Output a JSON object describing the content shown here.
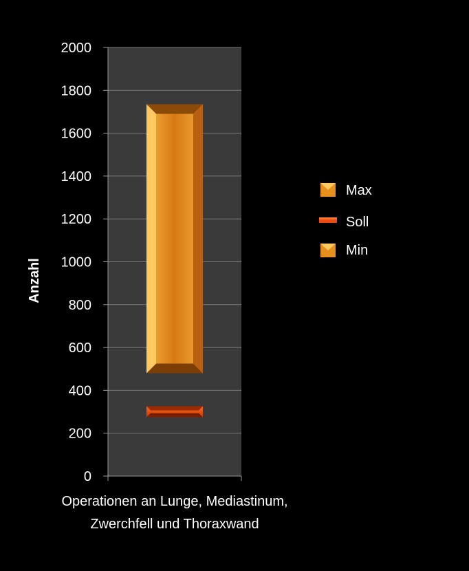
{
  "chart_data": {
    "type": "bar",
    "categories": [
      "Operationen an Lunge, Mediastinum, Zwerchfell und Thoraxwand"
    ],
    "category_label_lines": [
      "Operationen an Lunge, Mediastinum,",
      "Zwerchfell und Thoraxwand"
    ],
    "ylabel": "Anzahl",
    "xlabel": "",
    "ylim": [
      0,
      2000
    ],
    "yticks": [
      0,
      200,
      400,
      600,
      800,
      1000,
      1200,
      1400,
      1600,
      1800,
      2000
    ],
    "grid": true,
    "legend_position": "right",
    "series": [
      {
        "name": "Max",
        "values": [
          1735
        ],
        "color": "#E8901E"
      },
      {
        "name": "Soll",
        "values": [
          300
        ],
        "color": "#E84A10"
      },
      {
        "name": "Min",
        "values": [
          480
        ],
        "color": "#E8901E"
      }
    ]
  },
  "colors": {
    "background": "#000000",
    "plot_area": "#3A3A3A",
    "gridline": "#7A7A7A",
    "text": "#FFFFFF"
  }
}
